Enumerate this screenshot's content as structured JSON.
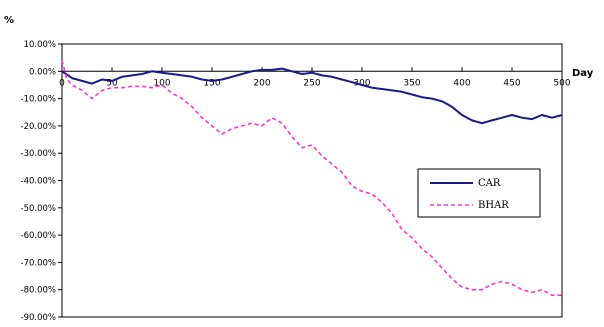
{
  "chart_data": {
    "type": "line",
    "title": "",
    "xlabel": "Day",
    "ylabel": "%",
    "xlim": [
      0,
      500
    ],
    "ylim": [
      -90,
      10
    ],
    "x_ticks": [
      0,
      50,
      100,
      150,
      200,
      250,
      300,
      350,
      400,
      450,
      500
    ],
    "y_ticks": [
      {
        "value": 10,
        "label": "10.00%"
      },
      {
        "value": 0,
        "label": "0.00%"
      },
      {
        "value": -10,
        "label": "-10.00%"
      },
      {
        "value": -20,
        "label": "-20.00%"
      },
      {
        "value": -30,
        "label": "-30.00%"
      },
      {
        "value": -40,
        "label": "-40.00%"
      },
      {
        "value": -50,
        "label": "-50.00%"
      },
      {
        "value": -60,
        "label": "-60.00%"
      },
      {
        "value": -70,
        "label": "-70.00%"
      },
      {
        "value": -80,
        "label": "-80.00%"
      },
      {
        "value": -90,
        "label": "-90.00%"
      }
    ],
    "grid": false,
    "legend_position": "right",
    "series": [
      {
        "name": "CAR",
        "color": "#1a1a8c",
        "style": "solid",
        "x": [
          0,
          10,
          20,
          30,
          40,
          50,
          60,
          70,
          80,
          90,
          100,
          110,
          120,
          130,
          140,
          150,
          160,
          170,
          180,
          190,
          200,
          210,
          220,
          230,
          240,
          250,
          260,
          270,
          280,
          290,
          300,
          310,
          320,
          330,
          340,
          350,
          360,
          370,
          380,
          390,
          400,
          410,
          420,
          430,
          440,
          450,
          460,
          470,
          480,
          490,
          500
        ],
        "values": [
          0,
          -2.5,
          -3.5,
          -4.5,
          -3,
          -3.5,
          -2,
          -1.5,
          -1,
          0,
          -0.5,
          -1,
          -1.5,
          -2,
          -3,
          -3.5,
          -3,
          -2,
          -1,
          0,
          0.5,
          0.5,
          1,
          0,
          -1,
          -0.5,
          -1.5,
          -2,
          -3,
          -4,
          -5,
          -6,
          -6.5,
          -7,
          -7.5,
          -8.5,
          -9.5,
          -10,
          -11,
          -13,
          -16,
          -18,
          -19,
          -18,
          -17,
          -16,
          -17,
          -17.5,
          -16,
          -17,
          -16
        ]
      },
      {
        "name": "BHAR",
        "color": "#ff33cc",
        "style": "dashed",
        "x": [
          0,
          5,
          10,
          20,
          30,
          40,
          50,
          60,
          70,
          80,
          90,
          100,
          110,
          120,
          130,
          140,
          150,
          160,
          170,
          180,
          190,
          200,
          210,
          220,
          230,
          240,
          250,
          260,
          270,
          280,
          290,
          300,
          310,
          320,
          330,
          340,
          350,
          360,
          370,
          380,
          390,
          400,
          410,
          420,
          430,
          440,
          450,
          460,
          470,
          480,
          490,
          500
        ],
        "values": [
          4,
          -3,
          -5,
          -7,
          -10,
          -7,
          -6,
          -6,
          -5.5,
          -5.5,
          -6,
          -5,
          -8,
          -10,
          -13,
          -17,
          -20,
          -23,
          -21,
          -20,
          -19,
          -20,
          -17,
          -19,
          -24,
          -28,
          -27,
          -31,
          -34,
          -37,
          -42,
          -44,
          -45,
          -48,
          -52,
          -58,
          -61,
          -65,
          -68,
          -72,
          -76,
          -79,
          -80,
          -80,
          -78,
          -77,
          -78,
          -80,
          -81,
          -80,
          -82,
          -82
        ]
      }
    ]
  }
}
